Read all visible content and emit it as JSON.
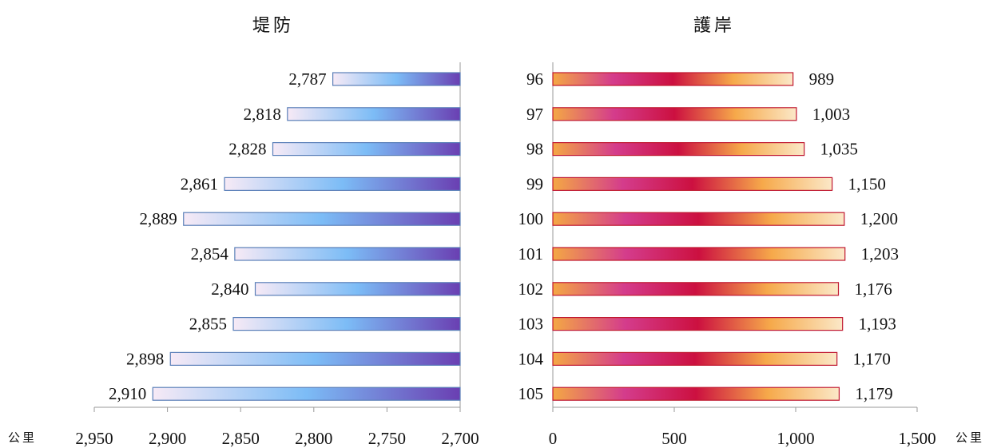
{
  "chart_data": [
    {
      "type": "bar",
      "orientation": "horizontal",
      "axis_direction": "reversed",
      "title": "堤防",
      "unit": "公里",
      "categories": [
        "96",
        "97",
        "98",
        "99",
        "100",
        "101",
        "102",
        "103",
        "104",
        "105"
      ],
      "values": [
        2787,
        2818,
        2828,
        2861,
        2889,
        2854,
        2840,
        2855,
        2898,
        2910
      ],
      "value_labels": [
        "2,787",
        "2,818",
        "2,828",
        "2,861",
        "2,889",
        "2,854",
        "2,840",
        "2,855",
        "2,898",
        "2,910"
      ],
      "xlim": [
        2700,
        2950
      ],
      "xticks": [
        2950,
        2900,
        2850,
        2800,
        2750,
        2700
      ],
      "xtick_labels": [
        "2,950",
        "2,900",
        "2,850",
        "2,800",
        "2,750",
        "2,700"
      ],
      "colors": {
        "gradient": [
          "#f7eaf6",
          "#7cbcf6",
          "#6a3fb2"
        ],
        "stroke": "#5a7fb8"
      }
    },
    {
      "type": "bar",
      "orientation": "horizontal",
      "title": "護岸",
      "unit": "公里",
      "categories": [
        "96",
        "97",
        "98",
        "99",
        "100",
        "101",
        "102",
        "103",
        "104",
        "105"
      ],
      "values": [
        989,
        1003,
        1035,
        1150,
        1200,
        1203,
        1176,
        1193,
        1170,
        1179
      ],
      "value_labels": [
        "989",
        "1,003",
        "1,035",
        "1,150",
        "1,200",
        "1,203",
        "1,176",
        "1,193",
        "1,170",
        "1,179"
      ],
      "xlim": [
        0,
        1500
      ],
      "xticks": [
        0,
        500,
        1000,
        1500
      ],
      "xtick_labels": [
        "0",
        "500",
        "1,000",
        "1,500"
      ],
      "colors": {
        "gradient": [
          "#f4a844",
          "#d43c8c",
          "#cc1040",
          "#f6a94a",
          "#fbe8c8"
        ],
        "stroke": "#c01830"
      }
    }
  ]
}
